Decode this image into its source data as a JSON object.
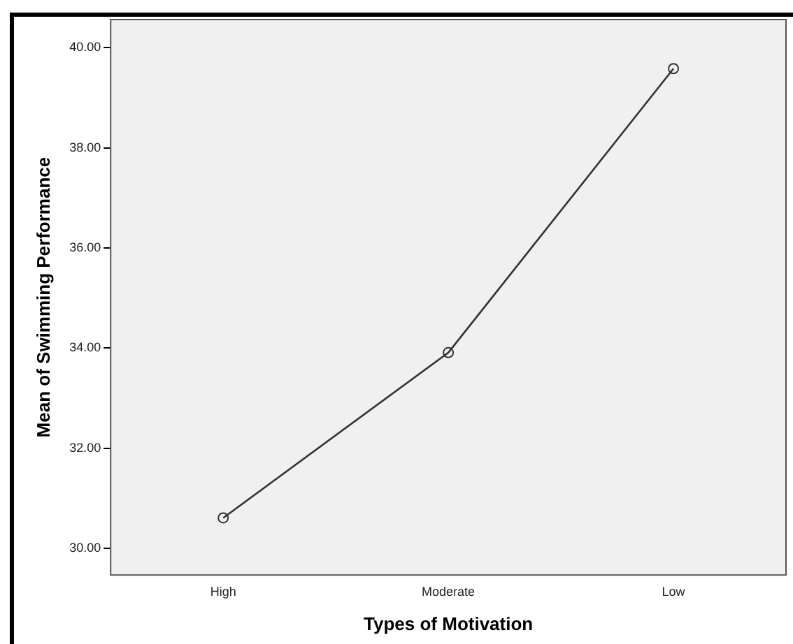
{
  "chart_data": {
    "type": "line",
    "xlabel": "Types of Motivation",
    "ylabel": "Mean of Swimming Performance",
    "categories": [
      "High",
      "Moderate",
      "Low"
    ],
    "series": [
      {
        "color": "#333333",
        "values": [
          30.61,
          33.91,
          39.58
        ]
      }
    ],
    "ylim": [
      29.47,
      40.56
    ],
    "yticks": [
      {
        "value": 30,
        "label": "30.00"
      },
      {
        "value": 32,
        "label": "32.00"
      },
      {
        "value": 34,
        "label": "34.00"
      },
      {
        "value": 36,
        "label": "36.00"
      },
      {
        "value": 38,
        "label": "38.00"
      },
      {
        "value": 40,
        "label": "40.00"
      }
    ],
    "grid": false,
    "legend": false,
    "marker": "circle",
    "line_style": "solid"
  }
}
